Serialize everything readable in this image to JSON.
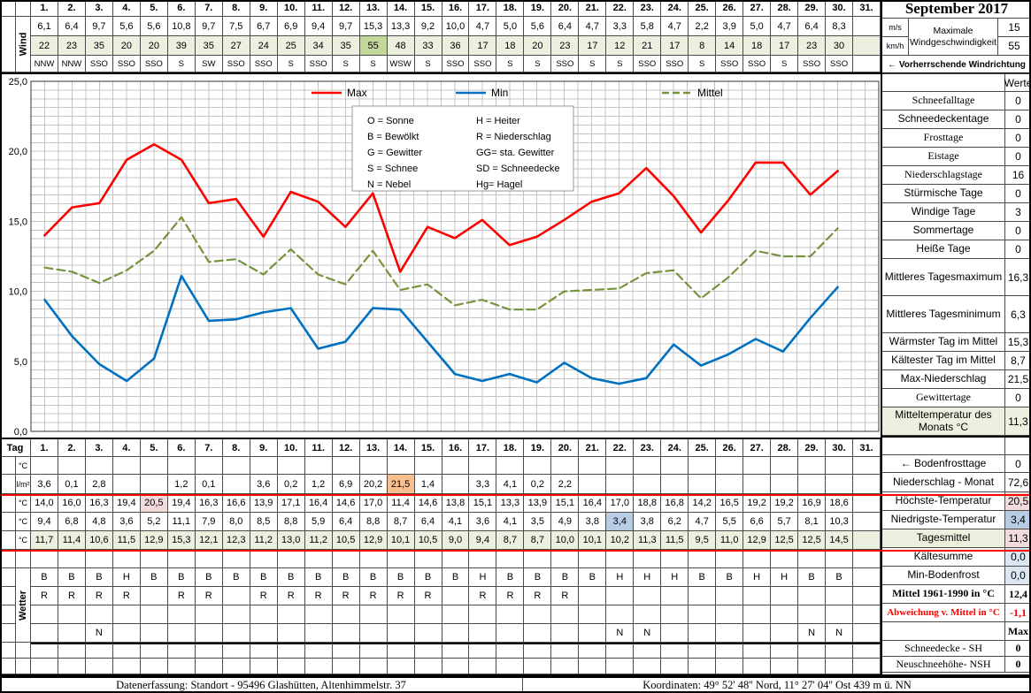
{
  "title": "September 2017",
  "colors": {
    "light_green": "#ebf1de",
    "dark_green": "#c4d79b",
    "orange": "#fabf8f",
    "pink": "#f2dcdb",
    "blue": "#b8cce4",
    "light_blue": "#dce6f1",
    "red": "#ff0000"
  },
  "wind": {
    "row_label": "Wind",
    "days": [
      "1.",
      "2.",
      "3.",
      "4.",
      "5.",
      "6.",
      "7.",
      "8.",
      "9.",
      "10.",
      "11.",
      "12.",
      "13.",
      "14.",
      "15.",
      "16.",
      "17.",
      "18.",
      "19.",
      "20.",
      "21.",
      "22.",
      "23.",
      "24.",
      "25.",
      "26.",
      "27.",
      "28.",
      "29.",
      "30.",
      "31."
    ],
    "ms": [
      "6,1",
      "6,4",
      "9,7",
      "5,6",
      "5,6",
      "10,8",
      "9,7",
      "7,5",
      "6,7",
      "6,9",
      "9,4",
      "9,7",
      "15,3",
      "13,3",
      "9,2",
      "10,0",
      "4,7",
      "5,0",
      "5,6",
      "6,4",
      "4,7",
      "3,3",
      "5,8",
      "4,7",
      "2,2",
      "3,9",
      "5,0",
      "4,7",
      "6,4",
      "8,3",
      ""
    ],
    "kmh": [
      "22",
      "23",
      "35",
      "20",
      "20",
      "39",
      "35",
      "27",
      "24",
      "25",
      "34",
      "35",
      "55",
      "48",
      "33",
      "36",
      "17",
      "18",
      "20",
      "23",
      "17",
      "12",
      "21",
      "17",
      "8",
      "14",
      "18",
      "17",
      "23",
      "30",
      ""
    ],
    "dir": [
      "NNW",
      "NNW",
      "SSO",
      "SSO",
      "SSO",
      "S",
      "SW",
      "SSO",
      "SSO",
      "S",
      "SSO",
      "S",
      "S",
      "WSW",
      "S",
      "SSO",
      "SSO",
      "S",
      "S",
      "SSO",
      "S",
      "S",
      "SSO",
      "SSO",
      "S",
      "SSO",
      "SSO",
      "S",
      "SSO",
      "SSO",
      ""
    ],
    "kmh_highlight_day": 13,
    "units": {
      "ms": "m/s",
      "kmh": "km/h"
    },
    "max": {
      "label": "Maximale Windgeschwindigkeit",
      "ms": "15",
      "kmh": "55"
    },
    "direction_note": "← Vorherrschende Windrichtung"
  },
  "chart_data": {
    "type": "line",
    "x": [
      1,
      2,
      3,
      4,
      5,
      6,
      7,
      8,
      9,
      10,
      11,
      12,
      13,
      14,
      15,
      16,
      17,
      18,
      19,
      20,
      21,
      22,
      23,
      24,
      25,
      26,
      27,
      28,
      29,
      30
    ],
    "series": [
      {
        "name": "Max",
        "color": "#ff0000",
        "dashed": false,
        "values": [
          14.0,
          16.0,
          16.3,
          19.4,
          20.5,
          19.4,
          16.3,
          16.6,
          13.9,
          17.1,
          16.4,
          14.6,
          17.0,
          11.4,
          14.6,
          13.8,
          15.1,
          13.3,
          13.9,
          15.1,
          16.4,
          17.0,
          18.8,
          16.8,
          14.2,
          16.5,
          19.2,
          19.2,
          16.9,
          18.6
        ]
      },
      {
        "name": "Min",
        "color": "#0070c0",
        "dashed": false,
        "values": [
          9.4,
          6.8,
          4.8,
          3.6,
          5.2,
          11.1,
          7.9,
          8.0,
          8.5,
          8.8,
          5.9,
          6.4,
          8.8,
          8.7,
          6.4,
          4.1,
          3.6,
          4.1,
          3.5,
          4.9,
          3.8,
          3.4,
          3.8,
          6.2,
          4.7,
          5.5,
          6.6,
          5.7,
          8.1,
          10.3
        ]
      },
      {
        "name": "Mittel",
        "color": "#77933c",
        "dashed": true,
        "values": [
          11.7,
          11.4,
          10.6,
          11.5,
          12.9,
          15.3,
          12.1,
          12.3,
          11.2,
          13.0,
          11.2,
          10.5,
          12.9,
          10.1,
          10.5,
          9.0,
          9.4,
          8.7,
          8.7,
          10.0,
          10.1,
          10.2,
          11.3,
          11.5,
          9.5,
          11.0,
          12.9,
          12.5,
          12.5,
          14.5
        ]
      }
    ],
    "ylim": [
      0,
      25
    ],
    "ytick_labels": [
      "0,0",
      "5,0",
      "10,0",
      "15,0",
      "20,0",
      "25,0"
    ],
    "xlabel": "",
    "ylabel": "",
    "grid": true,
    "legend_position": "top",
    "codes_box": {
      "left": [
        "O = Sonne",
        "B = Bewölkt",
        "G = Gewitter",
        "S = Schnee",
        "N = Nebel"
      ],
      "right": [
        "H = Heiter",
        "R = Niederschlag",
        "GG= sta. Gewitter",
        "SD = Schneedecke",
        "Hg= Hagel"
      ]
    }
  },
  "stats_top": {
    "header": "Werte",
    "rows": [
      {
        "label": "Schneefalltage",
        "value": "0"
      },
      {
        "label": "Schneedeckentage",
        "value": "0"
      },
      {
        "label": "Frosttage",
        "value": "0"
      },
      {
        "label": "Eistage",
        "value": "0"
      },
      {
        "label": "Niederschlagstage",
        "value": "16"
      },
      {
        "label": "Stürmische Tage",
        "value": "0"
      },
      {
        "label": "Windige Tage",
        "value": "3"
      },
      {
        "label": "Sommertage",
        "value": "0"
      },
      {
        "label": "Heiße Tage",
        "value": "0"
      },
      {
        "label": "Mittleres Tagesmaximum",
        "value": "16,3"
      },
      {
        "label": "Mittleres Tagesminimum",
        "value": "6,3"
      },
      {
        "label": "Wärmster Tag im Mittel",
        "value": "15,3"
      },
      {
        "label": "Kältester Tag im Mittel",
        "value": "8,7"
      },
      {
        "label": "Max-Niederschlag",
        "value": "21,5"
      },
      {
        "label": "Gewittertage",
        "value": "0"
      },
      {
        "label": "Mitteltemperatur des Monats °C",
        "value": "11,3",
        "lbg": "light_green",
        "vbg": "light_green"
      }
    ]
  },
  "day_table": {
    "tag_label": "Tag",
    "row_units": [
      "°C",
      "l/m²",
      "°C",
      "°C",
      "°C"
    ],
    "wetter_label": "Wetter",
    "precip": [
      "3,6",
      "0,1",
      "2,8",
      "",
      "",
      "1,2",
      "0,1",
      "",
      "3,6",
      "0,2",
      "1,2",
      "6,9",
      "20,2",
      "21,5",
      "1,4",
      "",
      "3,3",
      "4,1",
      "0,2",
      "2,2",
      "",
      "",
      "",
      "",
      "",
      "",
      "",
      "",
      "",
      "",
      ""
    ],
    "precip_highlight_day": 14,
    "tmax": [
      "14,0",
      "16,0",
      "16,3",
      "19,4",
      "20,5",
      "19,4",
      "16,3",
      "16,6",
      "13,9",
      "17,1",
      "16,4",
      "14,6",
      "17,0",
      "11,4",
      "14,6",
      "13,8",
      "15,1",
      "13,3",
      "13,9",
      "15,1",
      "16,4",
      "17,0",
      "18,8",
      "16,8",
      "14,2",
      "16,5",
      "19,2",
      "19,2",
      "16,9",
      "18,6",
      ""
    ],
    "tmax_highlight_day": 5,
    "tmin": [
      "9,4",
      "6,8",
      "4,8",
      "3,6",
      "5,2",
      "11,1",
      "7,9",
      "8,0",
      "8,5",
      "8,8",
      "5,9",
      "6,4",
      "8,8",
      "8,7",
      "6,4",
      "4,1",
      "3,6",
      "4,1",
      "3,5",
      "4,9",
      "3,8",
      "3,4",
      "3,8",
      "6,2",
      "4,7",
      "5,5",
      "6,6",
      "5,7",
      "8,1",
      "10,3",
      ""
    ],
    "tmin_highlight_day": 22,
    "tmean": [
      "11,7",
      "11,4",
      "10,6",
      "11,5",
      "12,9",
      "15,3",
      "12,1",
      "12,3",
      "11,2",
      "13,0",
      "11,2",
      "10,5",
      "12,9",
      "10,1",
      "10,5",
      "9,0",
      "9,4",
      "8,7",
      "8,7",
      "10,0",
      "10,1",
      "10,2",
      "11,3",
      "11,5",
      "9,5",
      "11,0",
      "12,9",
      "12,5",
      "12,5",
      "14,5",
      ""
    ],
    "weather_rows": [
      [
        "B",
        "B",
        "B",
        "H",
        "B",
        "B",
        "B",
        "B",
        "B",
        "B",
        "B",
        "B",
        "B",
        "B",
        "B",
        "B",
        "H",
        "B",
        "B",
        "B",
        "B",
        "H",
        "H",
        "H",
        "B",
        "B",
        "H",
        "H",
        "B",
        "B",
        ""
      ],
      [
        "R",
        "R",
        "R",
        "R",
        "",
        "R",
        "R",
        "",
        "R",
        "R",
        "R",
        "R",
        "R",
        "R",
        "R",
        "",
        "R",
        "R",
        "R",
        "R",
        "",
        "",
        "",
        "",
        "",
        "",
        "",
        "",
        "",
        "",
        ""
      ],
      [],
      [
        "",
        "",
        "N",
        "",
        "",
        "",
        "",
        "",
        "",
        "",
        "",
        "",
        "",
        "",
        "",
        "",
        "",
        "",
        "",
        "",
        "",
        "N",
        "N",
        "",
        "",
        "",
        "",
        "",
        "N",
        "N",
        ""
      ]
    ]
  },
  "stats_bottom": [
    {
      "label": "← Bodenfrosttage",
      "value": "0"
    },
    {
      "label": "Niederschlag - Monat",
      "value": "72,6"
    },
    {
      "label": "Höchste-Temperatur",
      "value": "20,5",
      "vbg": "pink"
    },
    {
      "label": "Niedrigste-Temperatur",
      "value": "3,4",
      "vbg": "blue"
    },
    {
      "label": "Tagesmittel",
      "value": "11,3",
      "lbg": "light_green",
      "vbg": "pink"
    },
    {
      "label": "Kältesumme",
      "value": "0,0",
      "vbg": "light_blue"
    },
    {
      "label": "Min-Bodenfrost",
      "value": "0,0",
      "vbg": "light_blue"
    },
    {
      "label": "Mittel 1961-1990 in °C",
      "value": "12,4"
    },
    {
      "label": "Abweichung v. Mittel in °C",
      "value": "-1,1"
    },
    {
      "label": "",
      "value": "Max"
    },
    {
      "label": "Schneedecke -   SH",
      "value": "0"
    },
    {
      "label": "Neuschneehöhe- NSH",
      "value": "0"
    }
  ],
  "footer": {
    "left": "Datenerfassung:  Standort -  95496  Glashütten, Altenhimmelstr. 37",
    "right": "Koordinaten:   49° 52' 48'' Nord,   11° 27' 04'' Ost   439 m ü. NN"
  }
}
